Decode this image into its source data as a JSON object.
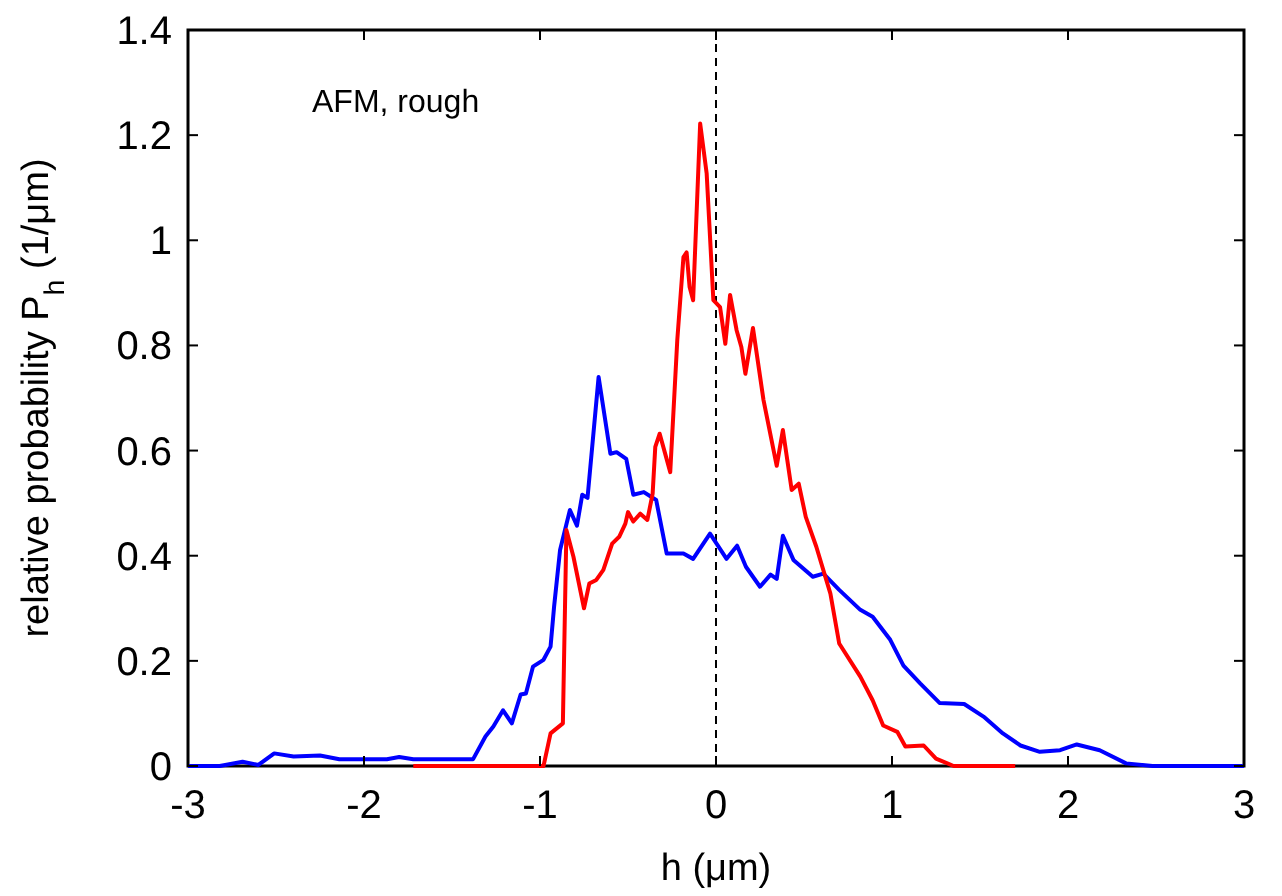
{
  "chart_data": {
    "type": "line",
    "xlabel": "h  (μm)",
    "ylabel": "relative probability P$_{h}$  (1/μm)",
    "annotations": [
      "AFM, rough"
    ],
    "xlim": [
      -3,
      3
    ],
    "xticks": [
      -3,
      -2,
      -1,
      0,
      1,
      2,
      3
    ],
    "ylim": [
      0,
      1.4
    ],
    "yticks": [
      0,
      0.2,
      0.4,
      0.6,
      0.8,
      1,
      1.2,
      1.4
    ],
    "grid": false,
    "line_style": "solid",
    "ref_lines": [
      {
        "axis": "x",
        "value": 0,
        "color": "#000000",
        "line_style": "dashed"
      }
    ],
    "series": [
      {
        "color": "#0000ff",
        "x": [
          -3,
          -2.82,
          -2.69,
          -2.6,
          -2.51,
          -2.4,
          -2.25,
          -2.14,
          -1.87,
          -1.8,
          -1.72,
          -1.38,
          -1.31,
          -1.265,
          -1.21,
          -1.16,
          -1.11,
          -1.08,
          -1.04,
          -0.98,
          -0.94,
          -0.92,
          -0.886,
          -0.83,
          -0.79,
          -0.76,
          -0.73,
          -0.667,
          -0.6,
          -0.565,
          -0.51,
          -0.47,
          -0.41,
          -0.34,
          -0.28,
          -0.185,
          -0.13,
          -0.034,
          0.06,
          0.12,
          0.17,
          0.25,
          0.31,
          0.345,
          0.38,
          0.44,
          0.55,
          0.61,
          0.7,
          0.82,
          0.89,
          0.99,
          1.065,
          1.16,
          1.27,
          1.41,
          1.52,
          1.63,
          1.73,
          1.84,
          1.955,
          2.05,
          2.18,
          2.33,
          2.48,
          3
        ],
        "values": [
          0,
          0,
          0.008,
          0.002,
          0.024,
          0.018,
          0.02,
          0.013,
          0.013,
          0.017,
          0.013,
          0.013,
          0.056,
          0.075,
          0.106,
          0.081,
          0.136,
          0.138,
          0.189,
          0.202,
          0.227,
          0.303,
          0.411,
          0.487,
          0.457,
          0.516,
          0.51,
          0.74,
          0.594,
          0.597,
          0.584,
          0.516,
          0.521,
          0.506,
          0.404,
          0.404,
          0.394,
          0.442,
          0.394,
          0.419,
          0.379,
          0.341,
          0.364,
          0.356,
          0.438,
          0.392,
          0.36,
          0.366,
          0.335,
          0.297,
          0.284,
          0.24,
          0.191,
          0.157,
          0.12,
          0.118,
          0.094,
          0.062,
          0.039,
          0.027,
          0.03,
          0.041,
          0.03,
          0.005,
          0,
          0
        ]
      },
      {
        "color": "#ff0000",
        "x": [
          -1.72,
          -0.98,
          -0.94,
          -0.87,
          -0.85,
          -0.81,
          -0.75,
          -0.72,
          -0.68,
          -0.64,
          -0.59,
          -0.55,
          -0.515,
          -0.5,
          -0.47,
          -0.43,
          -0.39,
          -0.36,
          -0.345,
          -0.32,
          -0.26,
          -0.22,
          -0.185,
          -0.167,
          -0.15,
          -0.13,
          -0.09,
          -0.053,
          -0.015,
          0.023,
          0.053,
          0.08,
          0.117,
          0.144,
          0.167,
          0.21,
          0.27,
          0.345,
          0.38,
          0.43,
          0.47,
          0.51,
          0.57,
          0.65,
          0.7,
          0.82,
          0.89,
          0.95,
          1.03,
          1.076,
          1.18,
          1.25,
          1.35,
          1.7
        ],
        "values": [
          0,
          0,
          0.062,
          0.081,
          0.449,
          0.398,
          0.3,
          0.347,
          0.354,
          0.373,
          0.423,
          0.436,
          0.461,
          0.483,
          0.465,
          0.48,
          0.468,
          0.518,
          0.607,
          0.632,
          0.559,
          0.81,
          0.968,
          0.977,
          0.911,
          0.886,
          1.222,
          1.127,
          0.886,
          0.873,
          0.803,
          0.896,
          0.829,
          0.797,
          0.746,
          0.833,
          0.696,
          0.571,
          0.639,
          0.525,
          0.537,
          0.474,
          0.417,
          0.328,
          0.233,
          0.17,
          0.125,
          0.077,
          0.065,
          0.037,
          0.039,
          0.014,
          0,
          0
        ]
      }
    ]
  }
}
